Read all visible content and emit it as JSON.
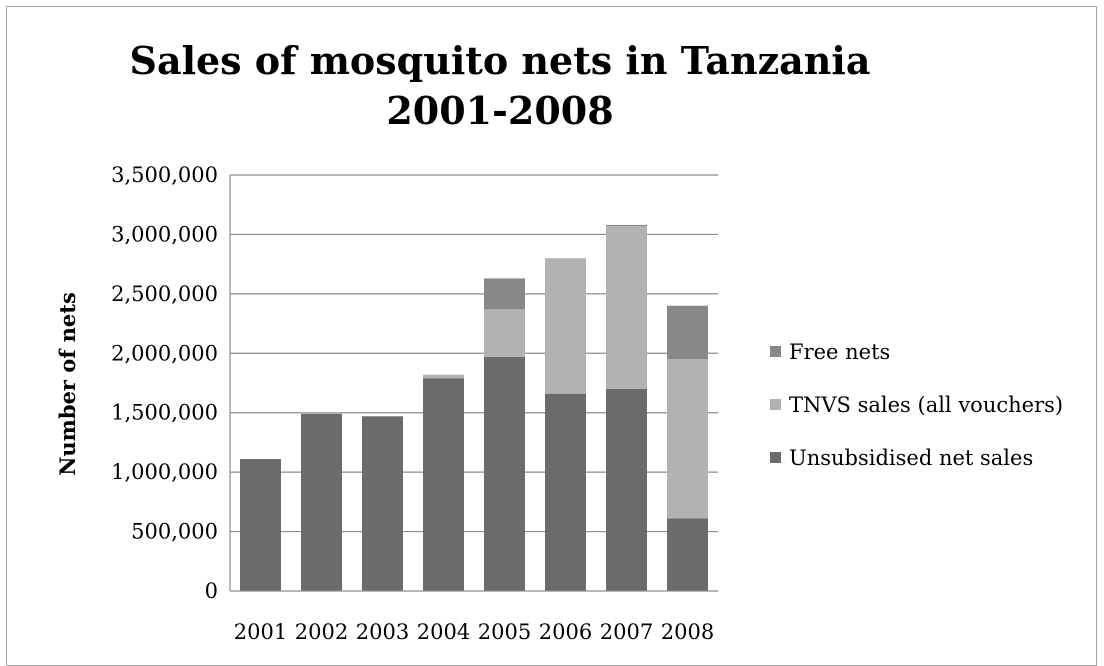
{
  "chart_data": {
    "type": "bar",
    "stacked": true,
    "title": "Sales of mosquito nets in Tanzania",
    "subtitle": "2001-2008",
    "xlabel": "",
    "ylabel": "Number of nets",
    "ylim": [
      0,
      3500000
    ],
    "yticks": [
      0,
      500000,
      1000000,
      1500000,
      2000000,
      2500000,
      3000000,
      3500000
    ],
    "ytick_labels": [
      "0",
      "500,000",
      "1,000,000",
      "1,500,000",
      "2,000,000",
      "2,500,000",
      "3,000,000",
      "3,500,000"
    ],
    "categories": [
      "2001",
      "2002",
      "2003",
      "2004",
      "2005",
      "2006",
      "2007",
      "2008"
    ],
    "grid": true,
    "legend_position": "right",
    "series": [
      {
        "name": "Unsubsidised net sales",
        "color": "#6b6b6b",
        "values": [
          1110000,
          1490000,
          1470000,
          1790000,
          1970000,
          1660000,
          1700000,
          610000
        ]
      },
      {
        "name": "TNVS sales (all vouchers)",
        "color": "#b2b2b2",
        "values": [
          0,
          10000,
          0,
          30000,
          400000,
          1140000,
          1370000,
          1340000
        ]
      },
      {
        "name": "Free nets",
        "color": "#888888",
        "values": [
          0,
          0,
          0,
          0,
          260000,
          0,
          10000,
          450000
        ]
      }
    ]
  }
}
